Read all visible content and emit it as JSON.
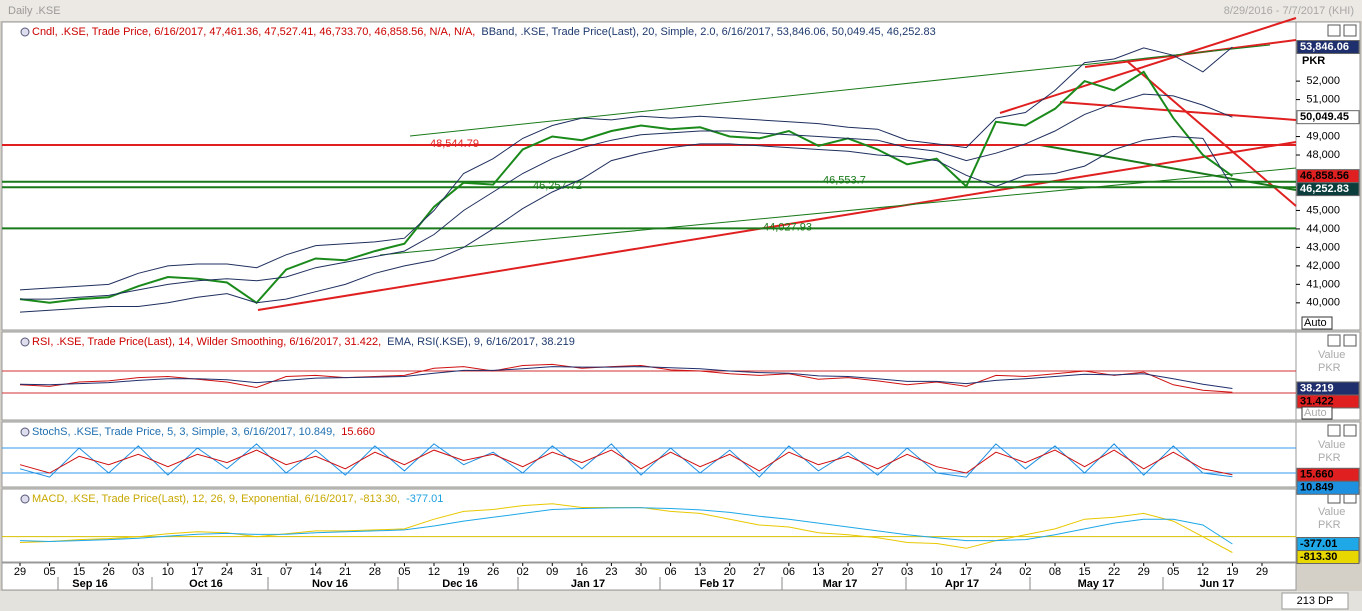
{
  "header": {
    "title": "Daily .KSE",
    "range": "8/29/2016 - 7/7/2017 (KHI)"
  },
  "chart_data": [
    {
      "type": "line",
      "legend": [
        {
          "text": "Cndl, .KSE, Trade Price, 6/16/2017, 47,461.36, 47,527.41, 46,733.70, 46,858.56, N/A, N/A,",
          "color": "#cc0000"
        },
        {
          "text": "BBand, .KSE, Trade Price(Last), 20, Simple, 2.0, 6/16/2017, 53,846.06, 50,049.45, 46,252.83",
          "color": "#1f3a6e"
        }
      ],
      "categories": [
        "29",
        "05",
        "15",
        "26",
        "03",
        "10",
        "17",
        "24",
        "31",
        "07",
        "14",
        "21",
        "28",
        "05",
        "12",
        "19",
        "26",
        "02",
        "09",
        "16",
        "23",
        "30",
        "06",
        "13",
        "20",
        "27",
        "06",
        "13",
        "20",
        "27",
        "03",
        "10",
        "17",
        "24",
        "02",
        "08",
        "15",
        "22",
        "29",
        "05",
        "12",
        "19",
        "29"
      ],
      "months": [
        "Sep 16",
        "Oct 16",
        "Nov 16",
        "Dec 16",
        "Jan 17",
        "Feb 17",
        "Mar 17",
        "Apr 17",
        "May 17",
        "Jun 17"
      ],
      "series": [
        {
          "color": "#1a8a1a",
          "values": [
            40200,
            40000,
            40200,
            40300,
            40900,
            41400,
            41300,
            41100,
            40000,
            41800,
            42400,
            42300,
            42800,
            43200,
            45200,
            46500,
            46400,
            48300,
            49000,
            48800,
            49300,
            49600,
            49400,
            49500,
            49000,
            48900,
            49300,
            48500,
            48900,
            48300,
            47500,
            47800,
            46300,
            49800,
            49600,
            50500,
            52000,
            51500,
            52500,
            50000,
            48000,
            46858.56,
            null
          ]
        },
        {
          "color": "#1f2f5e",
          "values": [
            40700,
            40800,
            40900,
            41000,
            41600,
            42000,
            42100,
            42100,
            41900,
            42600,
            43100,
            43200,
            43300,
            43500,
            45000,
            47000,
            47800,
            48900,
            49600,
            50000,
            49900,
            50100,
            50000,
            50100,
            50000,
            49900,
            49800,
            49700,
            49500,
            49400,
            48800,
            48600,
            48400,
            50000,
            50300,
            51500,
            53000,
            53200,
            53800,
            53400,
            52500,
            53846.06,
            null
          ]
        },
        {
          "color": "#1f2f5e",
          "values": [
            40200,
            40200,
            40300,
            40400,
            40700,
            41000,
            41200,
            41300,
            41200,
            41400,
            41900,
            42200,
            42500,
            42800,
            43700,
            45000,
            46000,
            47000,
            47800,
            48400,
            48800,
            49100,
            49200,
            49300,
            49300,
            49200,
            49100,
            49000,
            48900,
            48800,
            48400,
            48200,
            47700,
            48100,
            48600,
            49300,
            50200,
            50800,
            51300,
            51200,
            50700,
            50049.45,
            null
          ]
        },
        {
          "color": "#1f2f5e",
          "values": [
            39500,
            39600,
            39700,
            39800,
            39800,
            40000,
            40300,
            40500,
            40000,
            40200,
            40600,
            41000,
            41600,
            42000,
            42300,
            43000,
            44000,
            45100,
            46000,
            46700,
            47700,
            48100,
            48400,
            48600,
            48600,
            48500,
            48400,
            48300,
            48200,
            48000,
            47900,
            47700,
            46900,
            46300,
            46900,
            47000,
            47400,
            48300,
            48800,
            49000,
            48900,
            46252.83,
            null
          ]
        }
      ],
      "ylim": [
        38800,
        55200
      ],
      "yticks": [
        {
          "value": 52000,
          "label": "52,000"
        },
        {
          "value": 51000,
          "label": "51,000"
        },
        {
          "value": 49000,
          "label": "49,000"
        },
        {
          "value": 48000,
          "label": "48,000"
        },
        {
          "value": 45000,
          "label": "45,000"
        },
        {
          "value": 44000,
          "label": "44,000"
        },
        {
          "value": 43000,
          "label": "43,000"
        },
        {
          "value": 42000,
          "label": "42,000"
        },
        {
          "value": 41000,
          "label": "41,000"
        },
        {
          "value": 40000,
          "label": "40,000"
        }
      ],
      "levels": [
        {
          "value": 48544.79,
          "label": "48,544.79",
          "color": "#e02020"
        },
        {
          "value": 46257.72,
          "label": "46,257.72",
          "color": "#1a7a1a"
        },
        {
          "value": 46553.7,
          "label": "46,553.7",
          "color": "#1a7a1a"
        },
        {
          "value": 44027.93,
          "label": "44,027.93",
          "color": "#1a7a1a"
        }
      ],
      "axis_labels": [
        "PKR"
      ],
      "scale_mode": "Auto",
      "last_values": [
        {
          "value": 53846.06,
          "label": "53,846.06",
          "color": "#1f2f6e",
          "text_color": "#ffffff"
        },
        {
          "value": 50049.45,
          "label": "50,049.45",
          "color": "#ffffff",
          "text_color": "#000000"
        },
        {
          "value": 46858.56,
          "label": "46,858.56",
          "color": "#e02020",
          "text_color": "#000000"
        },
        {
          "value": 46252.83,
          "label": "46,252.83",
          "color": "#0b3d3d",
          "text_color": "#ffffff"
        }
      ]
    },
    {
      "type": "line",
      "legend": [
        {
          "text": "RSI, .KSE, Trade Price(Last), 14, Wilder Smoothing, 6/16/2017, 31.422,",
          "color": "#cc0000"
        },
        {
          "text": "EMA, RSI(.KSE), 9, 6/16/2017, 38.219",
          "color": "#1f3a6e"
        }
      ],
      "series": [
        {
          "color": "#d01010",
          "values": [
            45,
            42,
            50,
            52,
            58,
            60,
            55,
            50,
            40,
            60,
            62,
            58,
            60,
            62,
            75,
            78,
            70,
            80,
            82,
            75,
            78,
            80,
            72,
            70,
            65,
            62,
            65,
            55,
            58,
            52,
            45,
            50,
            42,
            62,
            60,
            65,
            70,
            62,
            68,
            45,
            35,
            31.422,
            null
          ]
        },
        {
          "color": "#1f2f6e",
          "values": [
            46,
            45,
            47,
            49,
            53,
            56,
            56,
            54,
            49,
            53,
            57,
            58,
            59,
            60,
            66,
            71,
            71,
            74,
            78,
            77,
            77,
            78,
            76,
            74,
            70,
            67,
            66,
            61,
            60,
            56,
            51,
            51,
            47,
            53,
            56,
            60,
            64,
            63,
            65,
            56,
            46,
            38.219,
            null
          ]
        }
      ],
      "ylim": [
        0,
        100
      ],
      "levels": [
        70,
        30
      ],
      "level_color": "#d03030",
      "axis_labels": [
        "Value",
        "PKR"
      ],
      "scale_mode": "Auto",
      "last_values": [
        {
          "value": 38.219,
          "color": "#1f2f6e",
          "text_color": "#ffffff"
        },
        {
          "value": 31.422,
          "color": "#e02020",
          "text_color": "#000000"
        }
      ]
    },
    {
      "type": "line",
      "legend": [
        {
          "text": "StochS, .KSE, Trade Price, 5, 3, Simple, 3, 6/16/2017, 10.849,",
          "color": "#1f6fb0"
        },
        {
          "text": "15.660",
          "color": "#cc0000"
        }
      ],
      "series": [
        {
          "color": "#1e90e0",
          "values": [
            30,
            10,
            80,
            20,
            85,
            15,
            80,
            30,
            90,
            20,
            75,
            15,
            85,
            25,
            90,
            40,
            70,
            20,
            85,
            30,
            90,
            15,
            80,
            20,
            75,
            10,
            85,
            25,
            70,
            15,
            80,
            20,
            10,
            90,
            30,
            85,
            20,
            90,
            15,
            85,
            20,
            10.849,
            null
          ]
        },
        {
          "color": "#d01010",
          "values": [
            40,
            20,
            60,
            40,
            65,
            35,
            65,
            45,
            75,
            40,
            60,
            30,
            70,
            40,
            75,
            50,
            65,
            35,
            70,
            45,
            75,
            30,
            70,
            35,
            65,
            25,
            70,
            40,
            60,
            30,
            65,
            35,
            20,
            70,
            45,
            75,
            35,
            75,
            30,
            70,
            30,
            15.66,
            null
          ]
        }
      ],
      "ylim": [
        0,
        100
      ],
      "levels": [
        80,
        20
      ],
      "level_color": "#3399ee",
      "axis_labels": [
        "Value",
        "PKR"
      ],
      "last_values": [
        {
          "value": 15.66,
          "label": "15.660",
          "color": "#e02020",
          "text_color": "#000000"
        },
        {
          "value": 10.849,
          "color": "#1e90e0",
          "text_color": "#000000"
        }
      ]
    },
    {
      "type": "line",
      "legend": [
        {
          "text": "MACD, .KSE, Trade Price(Last), 12, 26, 9, Exponential, 6/16/2017, -813.30,",
          "color": "#c8a800"
        },
        {
          "text": "-377.01",
          "color": "#1ea0e0"
        }
      ],
      "series": [
        {
          "color": "#e8c800",
          "values": [
            -300,
            -250,
            -150,
            -100,
            0,
            150,
            250,
            200,
            0,
            150,
            300,
            300,
            350,
            400,
            900,
            1300,
            1400,
            1600,
            1700,
            1500,
            1500,
            1500,
            1300,
            1200,
            900,
            600,
            500,
            200,
            100,
            -50,
            -300,
            -350,
            -600,
            -200,
            100,
            400,
            900,
            1000,
            1200,
            800,
            0,
            -813.3,
            null
          ]
        },
        {
          "color": "#1ea8e8",
          "values": [
            -200,
            -250,
            -200,
            -150,
            -80,
            30,
            130,
            170,
            120,
            130,
            200,
            250,
            300,
            350,
            550,
            800,
            1000,
            1200,
            1400,
            1450,
            1480,
            1490,
            1450,
            1380,
            1250,
            1050,
            900,
            700,
            500,
            300,
            100,
            -50,
            -200,
            -200,
            -150,
            100,
            400,
            700,
            900,
            900,
            600,
            -377.01,
            null
          ]
        }
      ],
      "ylim": [
        -1200,
        2300
      ],
      "levels": [
        0
      ],
      "level_color": "#d8c000",
      "axis_labels": [
        "Value",
        "PKR"
      ],
      "last_values": [
        {
          "value": -377.01,
          "label": "-377.01",
          "color": "#1ea8e8",
          "text_color": "#000000"
        },
        {
          "value": -813.3,
          "label": "-813.30",
          "color": "#e8d800",
          "text_color": "#000000"
        }
      ]
    }
  ],
  "footer": {
    "dp": "213 DP"
  }
}
